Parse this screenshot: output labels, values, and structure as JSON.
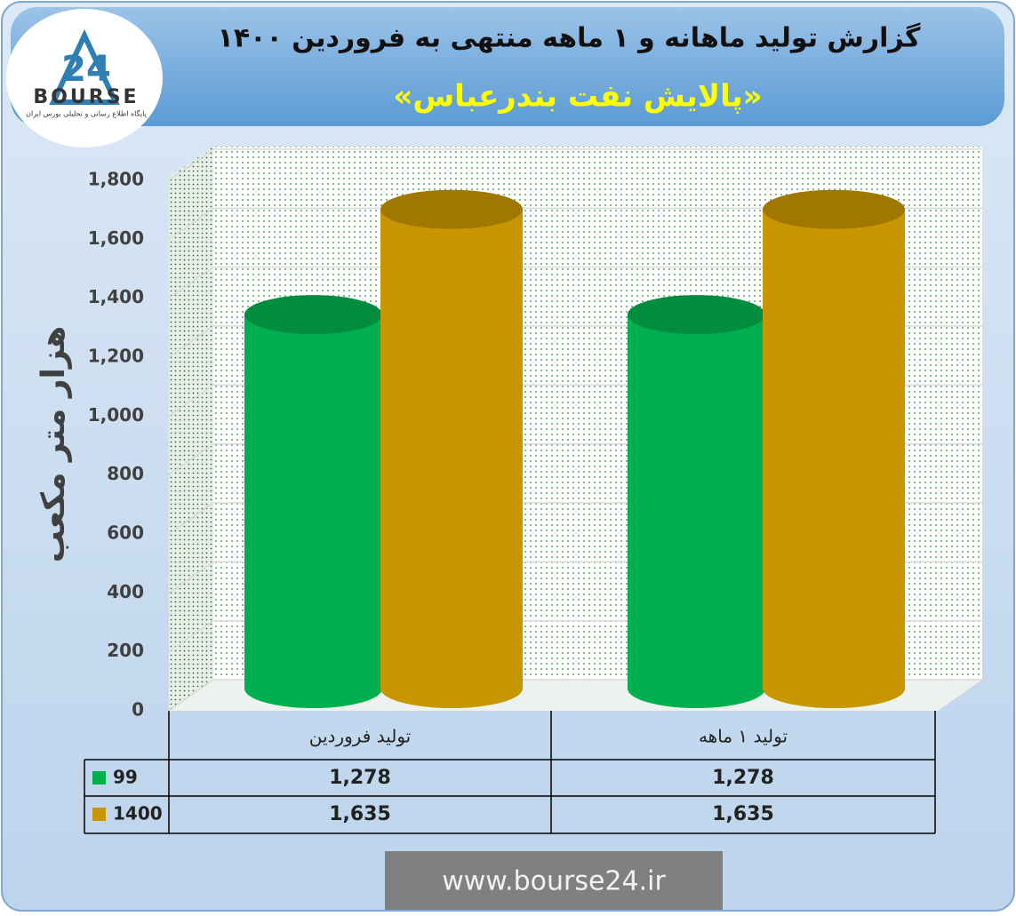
{
  "chart_data": {
    "type": "bar",
    "title": "گزارش تولید ماهانه و ۱ ماهه منتهی به فروردین ۱۴۰۰",
    "subtitle": "«پالایش نفت بندرعباس»",
    "y_label": "هزار متر مکعب",
    "categories": [
      "تولید فروردین",
      "تولید ۱ ماهه"
    ],
    "series": [
      {
        "name": "99",
        "color": "#00b050",
        "values": [
          1278,
          1278
        ],
        "value_labels": [
          "1,278",
          "1,278"
        ]
      },
      {
        "name": "1400",
        "color": "#c89600",
        "values": [
          1635,
          1635
        ],
        "value_labels": [
          "1,635",
          "1,635"
        ]
      }
    ],
    "ylim": [
      0,
      1800
    ],
    "yticks": [
      0,
      200,
      400,
      600,
      800,
      {
        "value": 1000,
        "label": "1,000"
      },
      {
        "value": 1200,
        "label": "1,200"
      },
      {
        "value": 1400,
        "label": "1,400"
      },
      {
        "value": 1600,
        "label": "1,600"
      },
      {
        "value": 1800,
        "label": "1,800"
      }
    ],
    "grid": true
  },
  "logo": {
    "mark": "24",
    "name": "BOURSE",
    "tagline": "پایگاه اطلاع رسانی و تحلیلی بورس ایران"
  },
  "footer": "www.bourse24.ir"
}
